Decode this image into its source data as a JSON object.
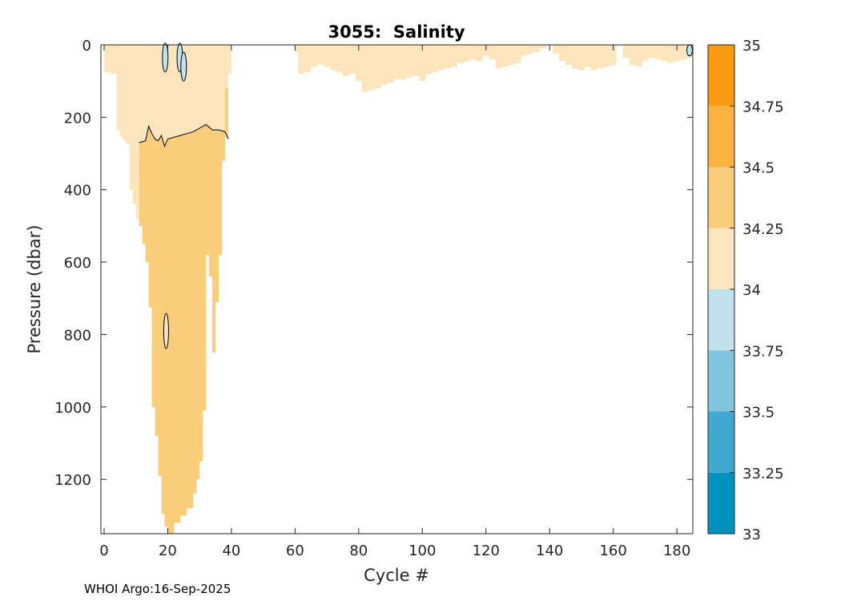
{
  "chart_data": {
    "type": "heatmap",
    "title": "3055:  Salinity",
    "xlabel": "Cycle #",
    "ylabel": "Pressure (dbar)",
    "xlim": [
      -1,
      185
    ],
    "ylim": [
      1350,
      0
    ],
    "x_ticks": [
      0,
      20,
      40,
      60,
      80,
      100,
      120,
      140,
      160,
      180
    ],
    "y_ticks": [
      0,
      200,
      400,
      600,
      800,
      1000,
      1200
    ],
    "colorbar": {
      "levels": [
        33,
        33.25,
        33.5,
        33.75,
        34,
        34.25,
        34.5,
        34.75,
        35
      ],
      "tick_labels": [
        "33",
        "33.25",
        "33.5",
        "33.75",
        "34",
        "34.25",
        "34.5",
        "34.75",
        "35"
      ],
      "colors": [
        "#0092bf",
        "#41a9cf",
        "#80c4de",
        "#c0e2ec",
        "#fce5bd",
        "#facd7c",
        "#f9b23e",
        "#f99c12"
      ]
    },
    "depth_profile": {
      "cycles": [
        0,
        2,
        4,
        5,
        6,
        7,
        8,
        9,
        10,
        11,
        12,
        13,
        14,
        15,
        16,
        17,
        18,
        19,
        20,
        22,
        24,
        26,
        28,
        29,
        30,
        31,
        32,
        33,
        34,
        35,
        36,
        37,
        38,
        39,
        40,
        41,
        42
      ],
      "max_pressure": [
        75,
        80,
        235,
        255,
        265,
        275,
        400,
        440,
        480,
        500,
        550,
        600,
        725,
        1000,
        1080,
        1190,
        1295,
        1330,
        1350,
        1320,
        1300,
        1280,
        1240,
        1200,
        1150,
        1010,
        580,
        640,
        850,
        710,
        580,
        320,
        120,
        80,
        0,
        0,
        0
      ]
    },
    "mid_layer_boundary": {
      "cycles": [
        11,
        13,
        14,
        15,
        16,
        17,
        18,
        19,
        20,
        22,
        24,
        26,
        28,
        30,
        32,
        34,
        36,
        38,
        39
      ],
      "pressure": [
        270,
        265,
        225,
        245,
        260,
        265,
        250,
        280,
        260,
        255,
        250,
        245,
        240,
        230,
        220,
        235,
        235,
        240,
        260
      ]
    },
    "surface_profile": {
      "cycles": [
        60,
        61,
        63,
        65,
        67,
        69,
        71,
        73,
        75,
        77,
        79,
        81,
        83,
        85,
        87,
        89,
        91,
        93,
        95,
        97,
        99,
        101,
        103,
        105,
        107,
        109,
        111,
        113,
        115,
        117,
        119,
        121,
        123,
        125,
        127,
        129,
        131,
        133,
        135,
        137,
        139,
        141,
        143,
        145,
        147,
        149,
        151,
        153,
        155,
        157,
        159,
        161,
        163,
        165,
        167,
        169,
        171,
        173,
        175,
        177,
        179,
        181,
        183,
        185
      ],
      "max_pressure": [
        20,
        80,
        75,
        60,
        55,
        60,
        70,
        75,
        85,
        80,
        100,
        130,
        125,
        120,
        110,
        105,
        95,
        95,
        90,
        85,
        100,
        80,
        75,
        70,
        65,
        60,
        50,
        45,
        40,
        45,
        30,
        40,
        65,
        60,
        55,
        50,
        30,
        25,
        20,
        10,
        0,
        25,
        45,
        55,
        65,
        70,
        60,
        70,
        65,
        60,
        55,
        0,
        35,
        55,
        60,
        45,
        35,
        40,
        45,
        50,
        45,
        40,
        35,
        30
      ]
    },
    "low_salinity_patches": [
      {
        "cycle": 19.2,
        "pressure": 35,
        "salinity": 33.9
      },
      {
        "cycle": 23.8,
        "pressure": 35,
        "salinity": 33.9
      },
      {
        "cycle": 25.0,
        "pressure": 60,
        "salinity": 33.9
      },
      {
        "cycle": 184.0,
        "pressure": 15,
        "salinity": 33.9
      }
    ]
  },
  "footer": "WHOI Argo:16-Sep-2025"
}
